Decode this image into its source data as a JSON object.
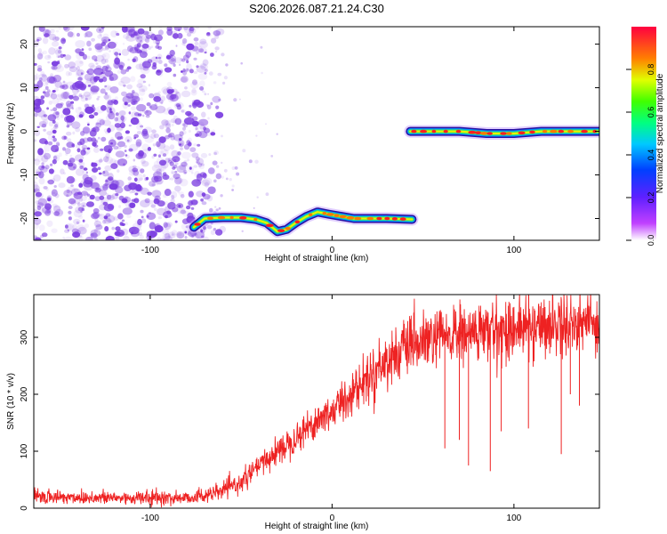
{
  "title": "S206.2026.087.21.24.C30",
  "chart_data": [
    {
      "type": "heatmap",
      "title": "S206.2026.087.21.24.C30",
      "xlabel": "Height of straight line (km)",
      "ylabel": "Frequency (Hz)",
      "xlim": [
        -164,
        147
      ],
      "ylim": [
        -25,
        24
      ],
      "xticks": [
        -100,
        0,
        100
      ],
      "yticks": [
        -20,
        -10,
        0,
        10,
        20
      ],
      "colorbar": {
        "label": "Normalized spectral amplitude",
        "range": [
          0,
          1
        ],
        "ticks": [
          "0.0",
          "0.2",
          "0.4",
          "0.6",
          "0.8"
        ]
      },
      "noise_region": {
        "x_start": -164,
        "x_end": -70,
        "color": "#7a3ce0"
      },
      "tracks": [
        {
          "name": "lower",
          "x": [
            -76,
            -70,
            -60,
            -50,
            -42,
            -36,
            -30,
            -25,
            -20,
            -14,
            -8,
            -2,
            5,
            12,
            20,
            30,
            44
          ],
          "y": [
            -22,
            -20,
            -19.8,
            -19.8,
            -20.2,
            -21,
            -23,
            -22.5,
            -21,
            -19.5,
            -18.5,
            -19,
            -19.5,
            -20,
            -20,
            -20,
            -20.2
          ]
        },
        {
          "name": "upper",
          "x": [
            43,
            55,
            70,
            85,
            100,
            115,
            130,
            147
          ],
          "y": [
            0,
            0,
            0,
            -0.5,
            -0.5,
            0,
            0,
            0
          ]
        }
      ]
    },
    {
      "type": "line",
      "xlabel": "Height of straight line (km)",
      "ylabel": "SNR (10 * v/v)",
      "xlim": [
        -164,
        147
      ],
      "ylim": [
        0,
        375
      ],
      "xticks": [
        -100,
        0,
        100
      ],
      "yticks": [
        0,
        100,
        200,
        300
      ],
      "series": [
        {
          "name": "SNR",
          "color": "#ee2222",
          "trend_x": [
            -164,
            -120,
            -80,
            -65,
            -50,
            -40,
            -30,
            -20,
            -10,
            0,
            10,
            20,
            30,
            40,
            50,
            60,
            80,
            100,
            120,
            147
          ],
          "trend_y": [
            20,
            18,
            18,
            25,
            45,
            75,
            100,
            125,
            150,
            170,
            200,
            230,
            260,
            280,
            290,
            300,
            308,
            315,
            322,
            330
          ],
          "dropouts": [
            {
              "x": 62,
              "y": 105
            },
            {
              "x": 70,
              "y": 120
            },
            {
              "x": 75,
              "y": 75
            },
            {
              "x": 87,
              "y": 65
            },
            {
              "x": 93,
              "y": 135
            },
            {
              "x": 108,
              "y": 140
            },
            {
              "x": 126,
              "y": 95
            },
            {
              "x": 131,
              "y": 200
            },
            {
              "x": 136,
              "y": 180
            }
          ]
        }
      ]
    }
  ]
}
